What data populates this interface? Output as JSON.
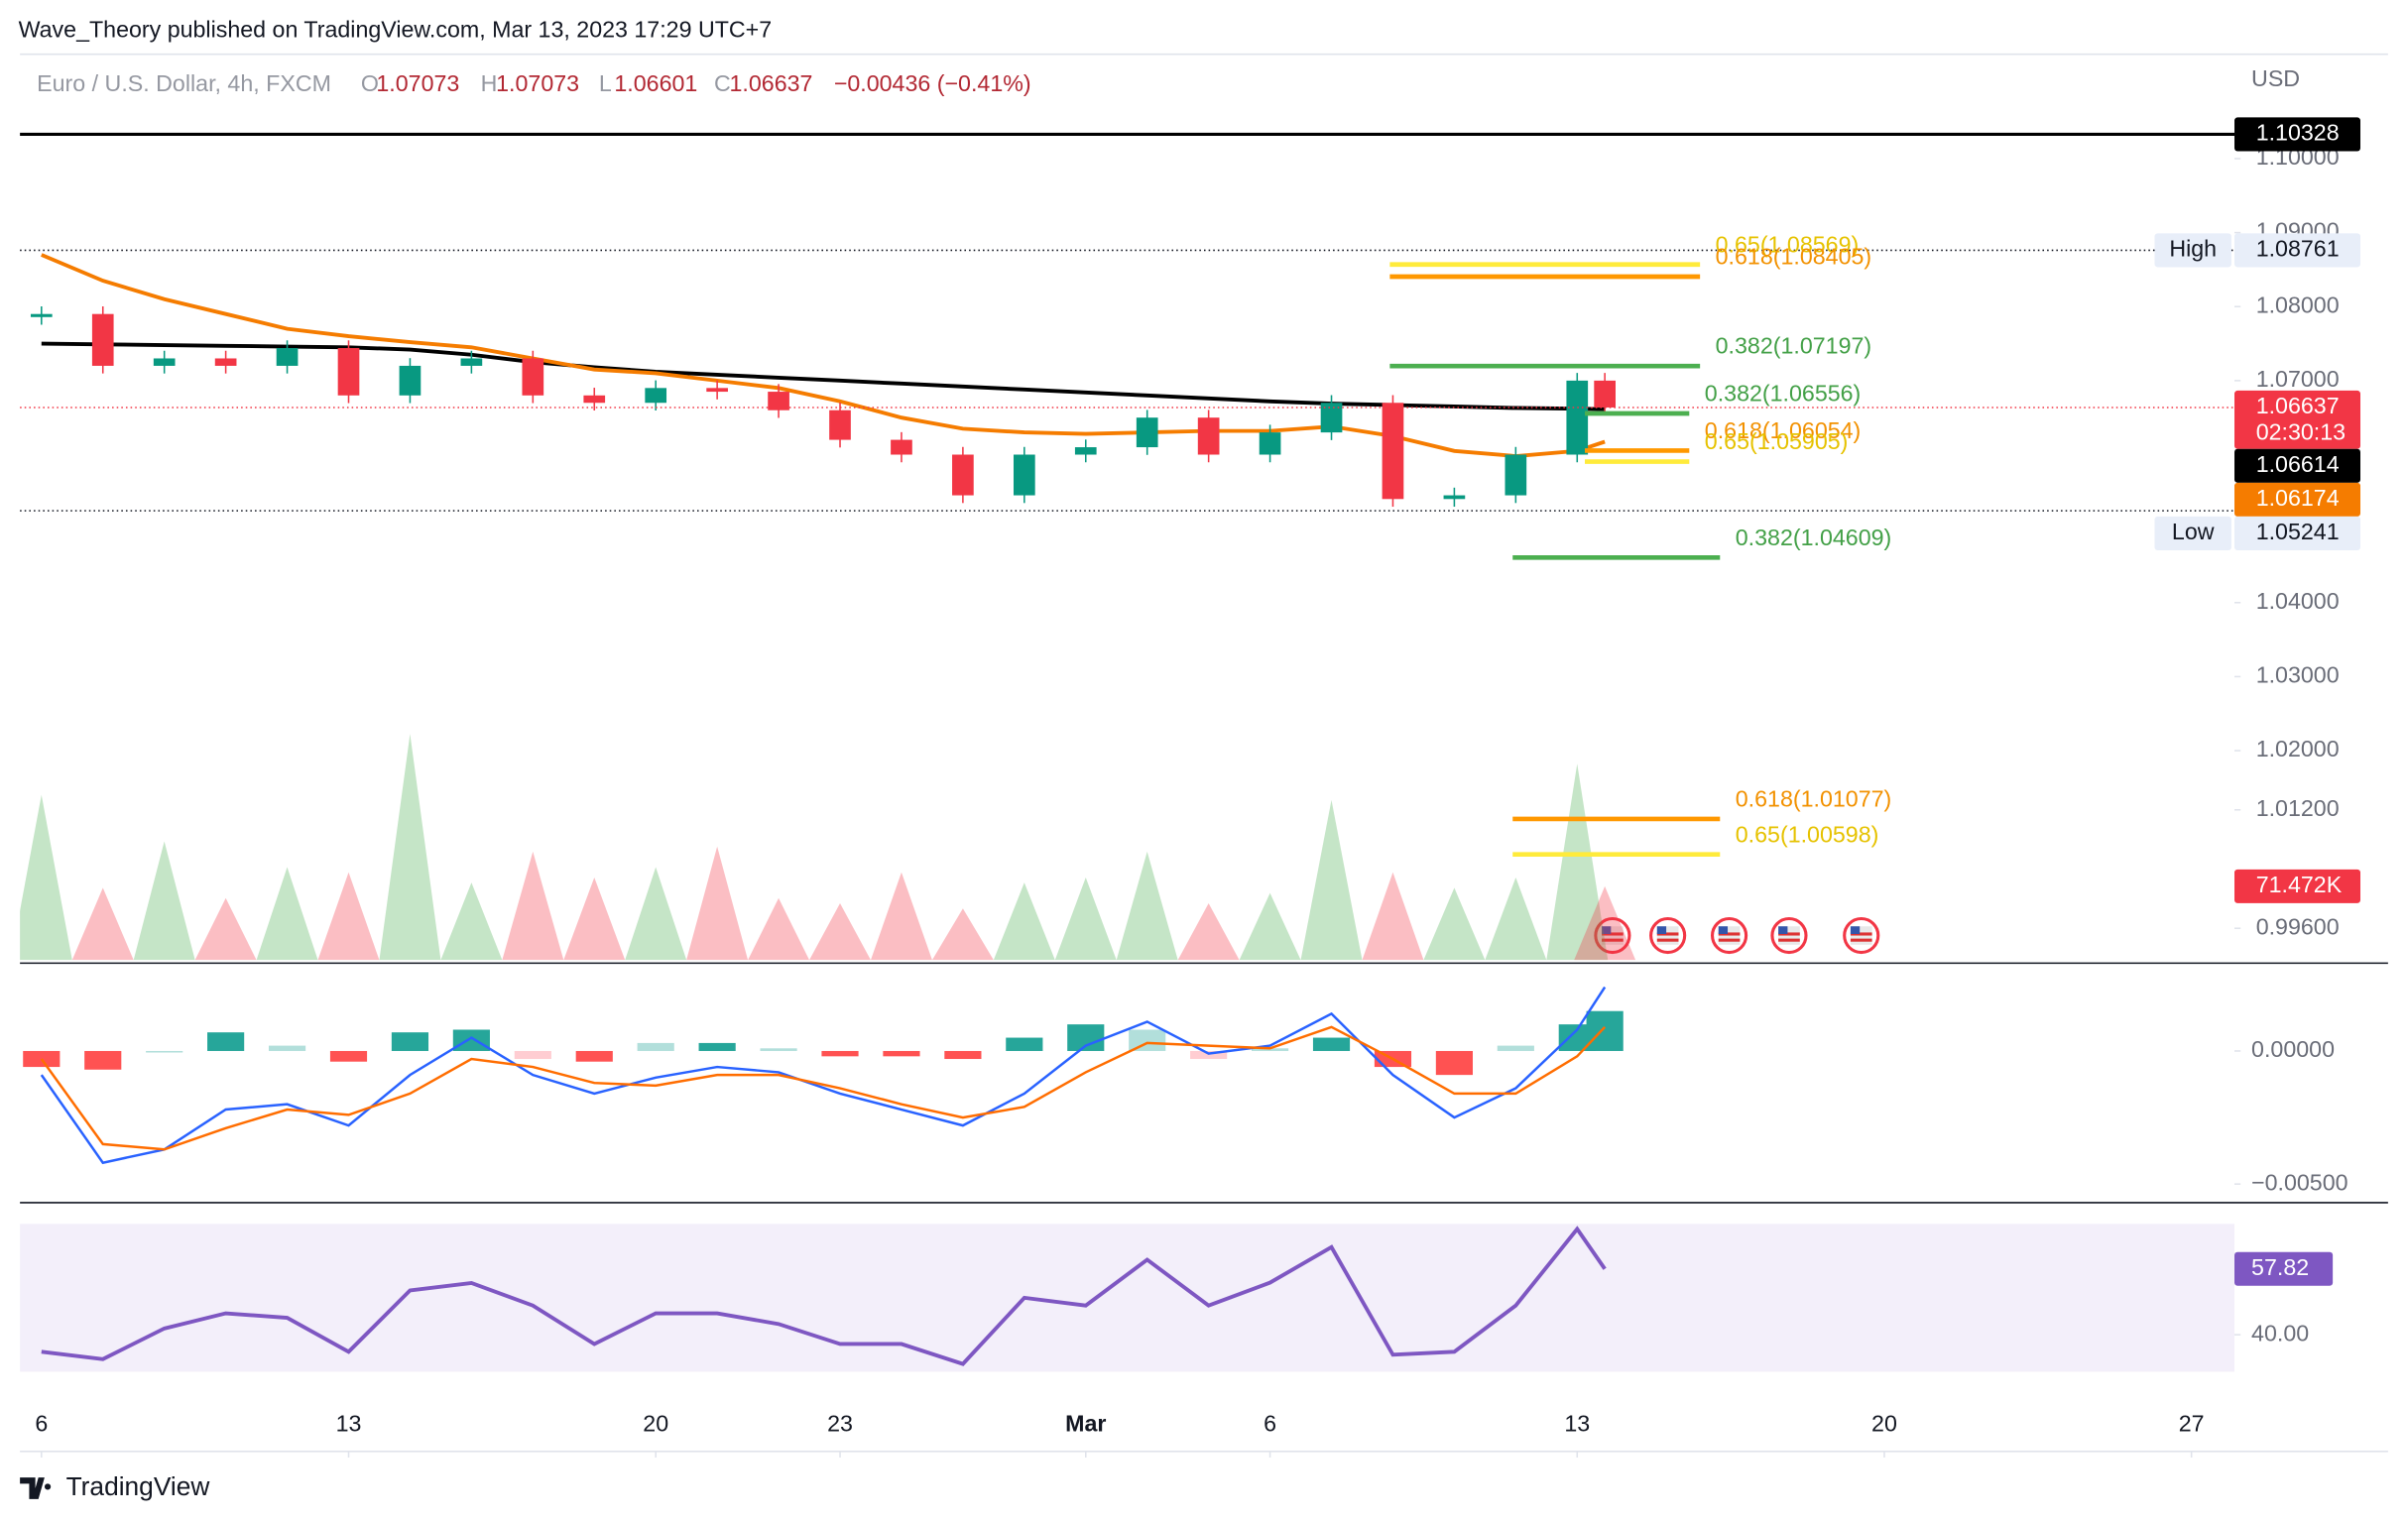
{
  "header": {
    "publisher": "Wave_Theory published on TradingView.com, Mar 13, 2023 17:29 UTC+7",
    "symbol": "Euro / U.S. Dollar, 4h, FXCM",
    "ohlc": [
      {
        "key": "O",
        "value": 1.07073
      },
      {
        "key": "H",
        "value": 1.07073
      },
      {
        "key": "L",
        "value": 1.06601
      },
      {
        "key": "C",
        "value": 1.06637
      }
    ],
    "change": "−0.00436 (−0.41%)",
    "currency": "USD"
  },
  "footer": {
    "brand": "TradingView"
  },
  "chart_data": {
    "type": "candlestick",
    "x": [
      0,
      1,
      2,
      3,
      4,
      5,
      6,
      7,
      8,
      9,
      10,
      11,
      12,
      13,
      14,
      15,
      16,
      17,
      18,
      19,
      20,
      21,
      22,
      23,
      24,
      25,
      25.45
    ],
    "xlim": [
      -0.35,
      35.7
    ],
    "xticks": [
      {
        "value": 0,
        "label": "6"
      },
      {
        "value": 5,
        "label": "13"
      },
      {
        "value": 10,
        "label": "20"
      },
      {
        "value": 13,
        "label": "23"
      },
      {
        "value": 17,
        "label": "Mar"
      },
      {
        "value": 20,
        "label": "6"
      },
      {
        "value": 25,
        "label": "13"
      },
      {
        "value": 30,
        "label": "20"
      },
      {
        "value": 35,
        "label": "27"
      }
    ],
    "ylim": [
      0.9917,
      1.1141
    ],
    "yticks": [
      {
        "value": 1.1,
        "label": "1.10000"
      },
      {
        "value": 1.09,
        "label": "1.09000"
      },
      {
        "value": 1.08,
        "label": "1.08000"
      },
      {
        "value": 1.07,
        "label": "1.07000"
      },
      {
        "value": 1.04,
        "label": "1.04000"
      },
      {
        "value": 1.03,
        "label": "1.03000"
      },
      {
        "value": 1.02,
        "label": "1.02000"
      },
      {
        "value": 1.012,
        "label": "1.01200"
      },
      {
        "value": 0.996,
        "label": "0.99600"
      }
    ],
    "close": [
      1.079,
      1.072,
      1.073,
      1.072,
      1.0744,
      1.068,
      1.072,
      1.073,
      1.068,
      1.067,
      1.069,
      1.0685,
      1.066,
      1.062,
      1.06,
      1.0545,
      1.06,
      1.061,
      1.065,
      1.06,
      1.063,
      1.067,
      1.054,
      1.0545,
      1.06,
      1.07,
      1.06637
    ],
    "up_color": "#089981",
    "down_color": "#f23645",
    "ema": [
      {
        "color": "#000000",
        "values": [
          1.075,
          1.0749,
          1.0748,
          1.0747,
          1.0746,
          1.0745,
          1.0742,
          1.0735,
          1.0725,
          1.0718,
          1.0712,
          1.0708,
          1.0704,
          1.07,
          1.0696,
          1.0692,
          1.0688,
          1.0684,
          1.068,
          1.0676,
          1.0672,
          1.0669,
          1.0667,
          1.0665,
          1.0663,
          1.0662,
          1.06614
        ]
      },
      {
        "color": "#f57c00",
        "values": [
          1.087,
          1.0835,
          1.081,
          1.079,
          1.077,
          1.076,
          1.0752,
          1.0745,
          1.073,
          1.0715,
          1.071,
          1.07,
          1.069,
          1.0672,
          1.065,
          1.0635,
          1.063,
          1.0628,
          1.063,
          1.0632,
          1.0632,
          1.0638,
          1.0625,
          1.0605,
          1.0598,
          1.0605,
          1.06174
        ]
      }
    ],
    "fib": [
      {
        "value": 1.08569,
        "label": "0.65(1.08569)",
        "color": "#ffeb3b"
      },
      {
        "value": 1.08405,
        "label": "0.618(1.08405)",
        "color": "#ff9800"
      },
      {
        "value": 1.07197,
        "label": "0.382(1.07197)",
        "color": "#4caf50"
      },
      {
        "value": 1.06556,
        "label": "0.382(1.06556)",
        "color": "#4caf50"
      },
      {
        "value": 1.06054,
        "label": "0.618(1.06054)",
        "color": "#ff9800"
      },
      {
        "value": 1.05905,
        "label": "0.65(1.05905)",
        "color": "#ffeb3b"
      },
      {
        "value": 1.04609,
        "label": "0.382(1.04609)",
        "color": "#4caf50"
      },
      {
        "value": 1.01077,
        "label": "0.618(1.01077)",
        "color": "#ff9800"
      },
      {
        "value": 1.00598,
        "label": "0.65(1.00598)",
        "color": "#ffeb3b"
      }
    ],
    "badges": [
      {
        "value": 1.10328,
        "bg": "#000000",
        "fg": "#ffffff",
        "line": "solid"
      },
      {
        "value": 1.08761,
        "bg": "#e8eef9",
        "fg": "#131722",
        "tag": "High",
        "line": "dotted"
      },
      {
        "value": 1.06637,
        "bg": "#f23645",
        "fg": "#ffffff",
        "countdown": "02:30:13",
        "line": "red-dotted"
      },
      {
        "value": 1.06614,
        "bg": "#000000",
        "fg": "#ffffff"
      },
      {
        "value": 1.06174,
        "bg": "#f57c00",
        "fg": "#ffffff"
      },
      {
        "value": 1.05241,
        "bg": "#e8eef9",
        "fg": "#131722",
        "tag": "Low",
        "line": "dotted"
      }
    ],
    "volume": {
      "ylim": [
        0,
        440
      ],
      "values": [
        160,
        70,
        115,
        60,
        90,
        85,
        219,
        75,
        105,
        80,
        90,
        110,
        60,
        55,
        85,
        50,
        75,
        80,
        105,
        55,
        65,
        155,
        85,
        70,
        80,
        190,
        71.472
      ],
      "last": {
        "value": 71.472,
        "label": "71.472K"
      }
    },
    "macd": {
      "ylim": [
        -0.0057,
        0.0033
      ],
      "yticks": [
        {
          "value": 0,
          "label": "0.00000"
        },
        {
          "value": -0.005,
          "label": "−0.00500"
        }
      ],
      "macd": {
        "color": "#2962ff",
        "values": [
          -0.0009,
          -0.0042,
          -0.0037,
          -0.0022,
          -0.002,
          -0.0028,
          -0.0009,
          0.0005,
          -0.0009,
          -0.0016,
          -0.001,
          -0.0006,
          -0.0008,
          -0.0016,
          -0.0022,
          -0.0028,
          -0.0016,
          0.0002,
          0.0011,
          -0.0001,
          0.0002,
          0.0014,
          -0.0009,
          -0.0025,
          -0.0014,
          0.0008,
          0.0024
        ]
      },
      "signal": {
        "color": "#ff6d00",
        "values": [
          -0.0003,
          -0.0035,
          -0.0037,
          -0.0029,
          -0.0022,
          -0.0024,
          -0.0016,
          -0.0003,
          -0.0006,
          -0.0012,
          -0.0013,
          -0.0009,
          -0.0009,
          -0.0014,
          -0.002,
          -0.0025,
          -0.0021,
          -0.0008,
          0.0003,
          0.0002,
          0.0001,
          0.0009,
          -0.0003,
          -0.0016,
          -0.0016,
          -0.0002,
          0.0009
        ]
      },
      "histogram": {
        "values": [
          -0.0006,
          -0.0007,
          0,
          0.0007,
          0.0002,
          -0.0004,
          0.0007,
          0.0008,
          -0.0003,
          -0.0004,
          0.0003,
          0.0003,
          0.0001,
          -0.0002,
          -0.0002,
          -0.0003,
          0.0005,
          0.001,
          0.0008,
          -0.0003,
          0.0001,
          0.0005,
          -0.0006,
          -0.0009,
          0.0002,
          0.001,
          0.0015
        ]
      }
    },
    "rsi": {
      "color": "#7e57c2",
      "ylim": [
        20.9,
        74.9
      ],
      "yticks": [
        {
          "value": 40,
          "label": "40.00"
        }
      ],
      "band": [
        30,
        70
      ],
      "values": [
        35.4,
        33.4,
        41.7,
        45.8,
        44.6,
        35.4,
        52,
        54,
        47.9,
        37.5,
        45.8,
        45.8,
        42.9,
        37.5,
        37.5,
        32.1,
        50,
        47.9,
        60.3,
        47.9,
        54.1,
        63.7,
        34.6,
        35.4,
        47.9,
        68.6,
        57.82
      ],
      "last": 57.82
    }
  }
}
